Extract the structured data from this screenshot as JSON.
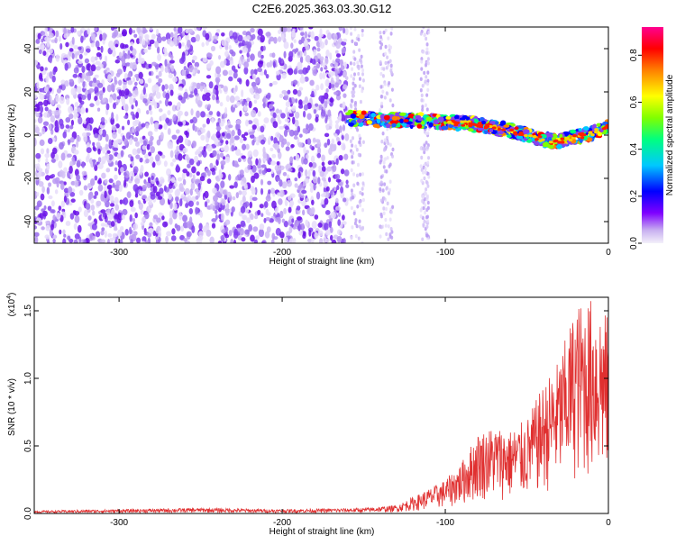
{
  "figure_title": "C2E6.2025.363.03.30.G12",
  "chart_data": [
    {
      "type": "heatmap",
      "name": "spectrogram",
      "xlabel": "Height of straight line (km)",
      "ylabel": "Frequency (Hz)",
      "xlim": [
        -352,
        0
      ],
      "ylim": [
        -50,
        50
      ],
      "xticks": [
        -300,
        -200,
        -100,
        0
      ],
      "yticks": [
        -40,
        -20,
        0,
        20,
        40
      ],
      "colorbar": {
        "label": "Normalized spectral amplitude",
        "range": [
          0.0,
          0.92
        ],
        "ticks": [
          0.0,
          0.2,
          0.4,
          0.6,
          0.8
        ],
        "colormap": [
          "#e8e8f8",
          "#c0a8f0",
          "#7f00ff",
          "#0000ff",
          "#00c8ff",
          "#00ff80",
          "#80ff00",
          "#ffff00",
          "#ff8000",
          "#ff0000",
          "#ff00a0"
        ]
      },
      "features": {
        "noise_region_x": [
          -352,
          -160
        ],
        "signal_band": {
          "x": [
            -160,
            -140,
            -120,
            -100,
            -80,
            -60,
            -40,
            -30,
            -20,
            -10,
            0
          ],
          "freq": [
            8,
            7,
            7,
            6,
            5,
            2,
            -2,
            -3,
            -1,
            1,
            4
          ]
        }
      }
    },
    {
      "type": "line",
      "name": "snr",
      "xlabel": "Height of straight line (km)",
      "ylabel": "SNR (10 * v/v)",
      "multiplier_label": "(x10",
      "multiplier_exp": "4",
      "multiplier_close": ")",
      "xlim": [
        -352,
        0
      ],
      "ylim": [
        0,
        1.6
      ],
      "xticks": [
        -300,
        -200,
        -100,
        0
      ],
      "yticks": [
        "0.0",
        "0.5",
        "1.0",
        "1.5"
      ],
      "ytick_values": [
        0.0,
        0.5,
        1.0,
        1.5
      ],
      "color": "#e03030",
      "envelope": {
        "x": [
          -352,
          -300,
          -250,
          -200,
          -150,
          -130,
          -115,
          -100,
          -90,
          -80,
          -70,
          -60,
          -50,
          -40,
          -30,
          -20,
          -10,
          -5,
          0
        ],
        "peak": [
          0.02,
          0.03,
          0.04,
          0.03,
          0.04,
          0.06,
          0.15,
          0.25,
          0.38,
          0.6,
          0.65,
          0.62,
          0.7,
          0.95,
          1.15,
          1.55,
          1.6,
          1.55,
          1.45
        ]
      }
    }
  ]
}
